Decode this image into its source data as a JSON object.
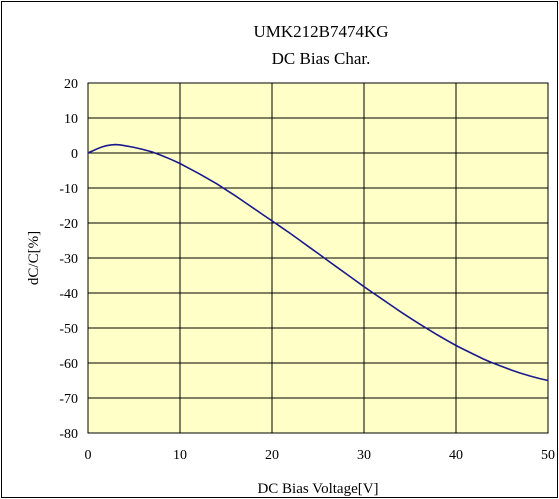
{
  "chart_data": {
    "type": "line",
    "title": "UMK212B7474KG",
    "subtitle": "DC Bias Char.",
    "xlabel": "DC Bias Voltage[V]",
    "ylabel": "dC/C[%]",
    "xlim": [
      0,
      50
    ],
    "ylim": [
      -80,
      20
    ],
    "x_ticks": [
      0,
      10,
      20,
      30,
      40,
      50
    ],
    "y_ticks": [
      20,
      10,
      0,
      -10,
      -20,
      -30,
      -40,
      -50,
      -60,
      -70,
      -80
    ],
    "grid": true,
    "legend": "none",
    "plot_background": "#ffffc8",
    "line_color": "#1a1a8c",
    "series": [
      {
        "x": [
          0,
          0.5,
          1,
          1.5,
          2,
          2.5,
          3,
          3.5,
          4,
          5,
          6,
          7,
          8,
          9,
          10,
          11,
          12,
          13,
          14,
          15,
          16,
          17,
          18,
          19,
          20,
          21,
          22,
          23,
          24,
          25,
          26,
          27,
          28,
          29,
          30,
          31,
          32,
          33,
          34,
          35,
          36,
          37,
          38,
          39,
          40,
          41,
          42,
          43,
          44,
          45,
          46,
          47,
          48,
          49,
          50
        ],
        "y": [
          0,
          0.6,
          1.2,
          1.7,
          2.1,
          2.3,
          2.4,
          2.3,
          2.1,
          1.6,
          1.0,
          0.3,
          -0.7,
          -1.8,
          -3.0,
          -4.4,
          -5.8,
          -7.3,
          -8.8,
          -10.5,
          -12.2,
          -14.0,
          -15.8,
          -17.6,
          -19.4,
          -21.2,
          -23.0,
          -24.9,
          -26.8,
          -28.7,
          -30.6,
          -32.5,
          -34.4,
          -36.3,
          -38.2,
          -40.0,
          -41.8,
          -43.6,
          -45.4,
          -47.1,
          -48.8,
          -50.4,
          -52.0,
          -53.5,
          -55.0,
          -56.3,
          -57.6,
          -58.9,
          -60.0,
          -61.0,
          -62.0,
          -62.9,
          -63.7,
          -64.4,
          -65.0
        ]
      }
    ]
  }
}
